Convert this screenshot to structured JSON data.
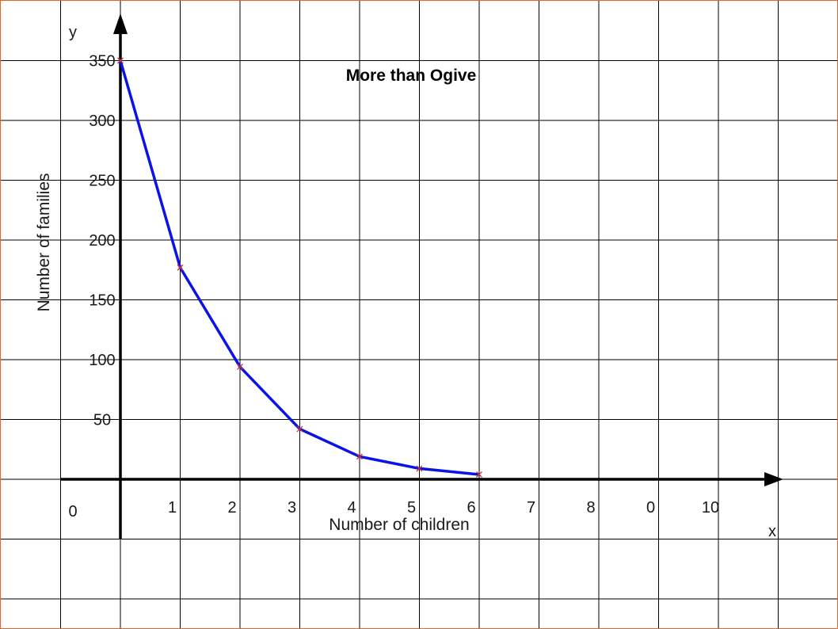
{
  "chart_data": {
    "type": "line",
    "title": "More than Ogive",
    "xlabel": "Number of children",
    "ylabel": "Number of families",
    "x_axis_letter": "x",
    "y_axis_letter": "y",
    "origin_label": "0",
    "x_tick_labels": [
      "1",
      "2",
      "3",
      "4",
      "5",
      "6",
      "7",
      "8",
      "0",
      "10"
    ],
    "y_tick_labels": [
      "50",
      "100",
      "150",
      "200",
      "250",
      "300",
      "350"
    ],
    "xlim": [
      0,
      11
    ],
    "ylim": [
      0,
      350
    ],
    "grid": true,
    "series": [
      {
        "x": [
          0,
          1,
          2,
          3,
          4,
          5,
          6
        ],
        "y": [
          350,
          177,
          94,
          42,
          19,
          9,
          4
        ]
      }
    ],
    "colors": {
      "line": "#0a14e6",
      "marker": "#d23030",
      "grid": "#000000",
      "axis": "#000000",
      "border": "#e8632c"
    }
  }
}
